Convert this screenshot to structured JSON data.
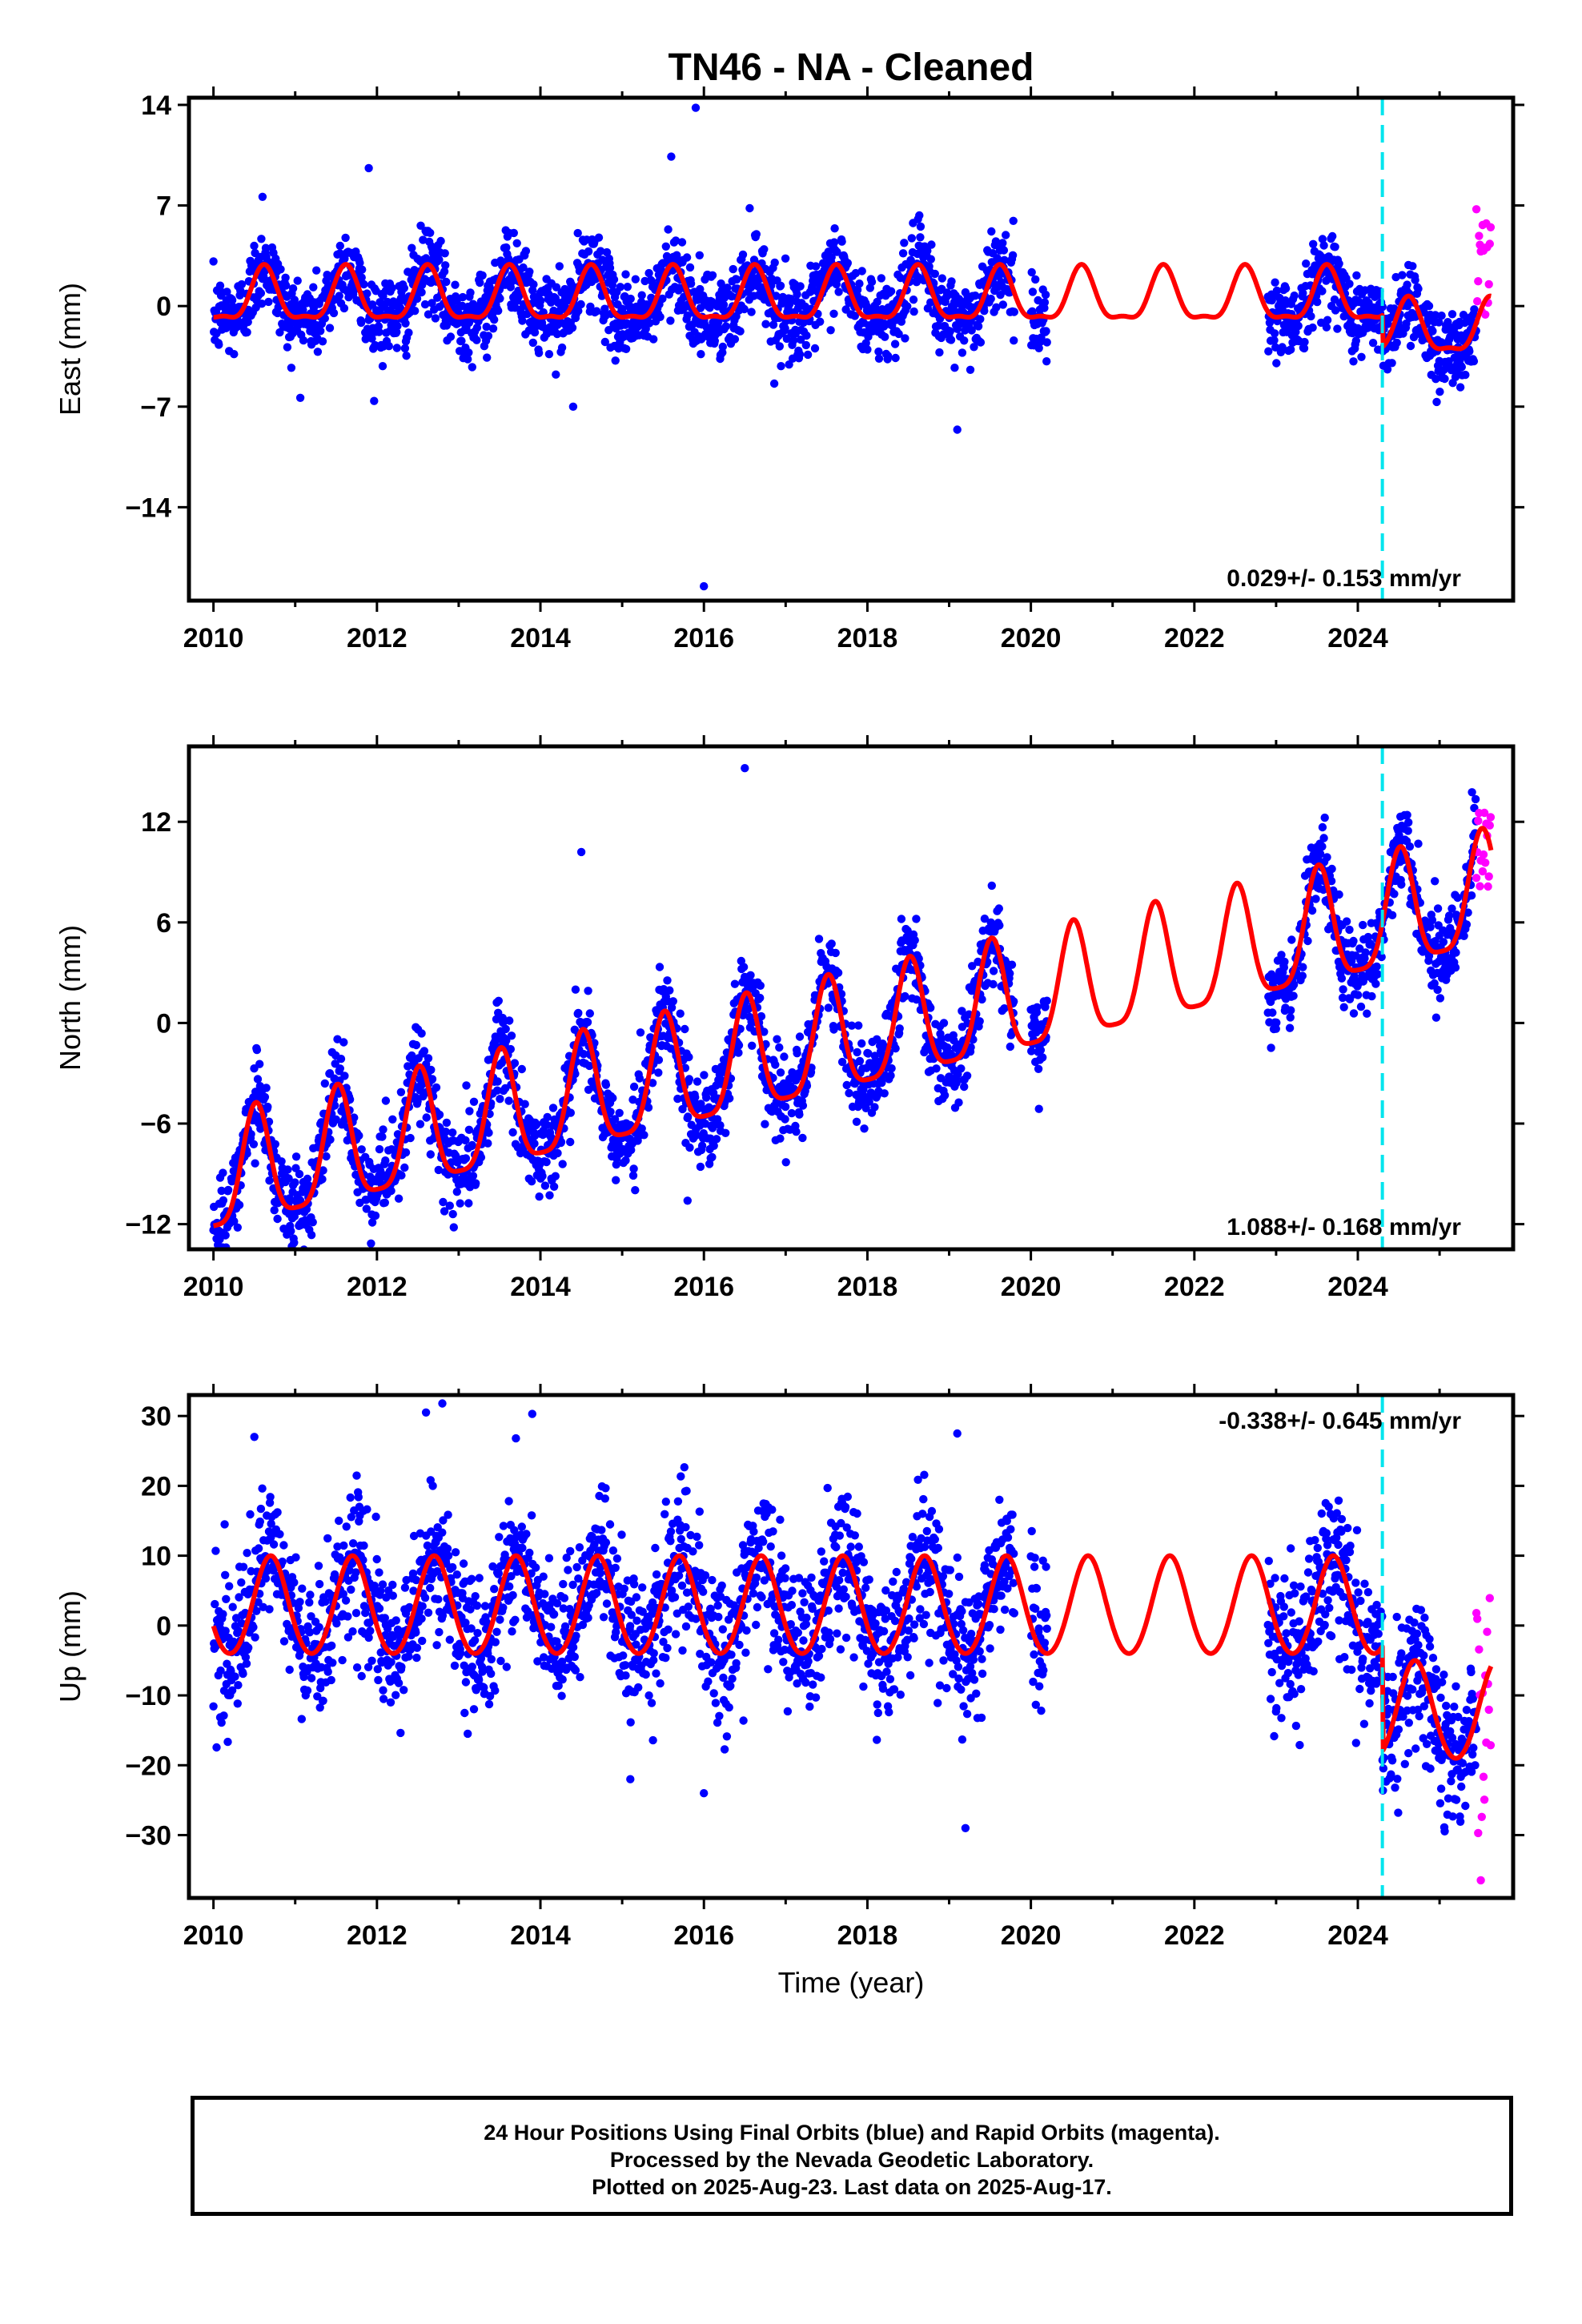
{
  "chart_data": [
    {
      "type": "scatter",
      "title": "TN46  - NA - Cleaned",
      "ylabel": "East (mm)",
      "xlabel": "",
      "xlim": [
        2009.7,
        2025.9
      ],
      "ylim": [
        -20.5,
        14.5
      ],
      "yticks": [
        14,
        7,
        0,
        -7,
        -14
      ],
      "xticks": [
        2010,
        2012,
        2014,
        2016,
        2018,
        2020,
        2022,
        2024
      ],
      "rate_text": "0.029+/- 0.153 mm/yr",
      "rate_position": "bottom-right",
      "offset_line_year": 2024.3,
      "final_orbit_points": {
        "color": "#0000ff",
        "segments": [
          [
            2010.0,
            2019.8
          ],
          [
            2020.0,
            2020.2
          ],
          [
            2022.9,
            2025.45
          ]
        ]
      },
      "rapid_orbit_points": {
        "color": "#ff00ff",
        "range": [
          2025.45,
          2025.63
        ],
        "min": -1,
        "max": 7.5
      },
      "model_curve": {
        "color": "#ff0000",
        "offset": 0.5,
        "annual_amplitude": 1.8,
        "peak_phase": 0.62,
        "semiannual_amplitude": 0.6,
        "after_offset_shift": -2.2
      },
      "scatter_sd": 1.4,
      "outliers": [
        [
          2011.9,
          9.6
        ],
        [
          2015.9,
          13.8
        ],
        [
          2015.6,
          10.4
        ],
        [
          2016.0,
          -19.5
        ],
        [
          2019.1,
          -8.6
        ],
        [
          2014.4,
          -7
        ],
        [
          2010.6,
          7.6
        ]
      ],
      "grid": false
    },
    {
      "type": "scatter",
      "title": "",
      "ylabel": "North (mm)",
      "xlabel": "",
      "xlim": [
        2009.7,
        2025.9
      ],
      "ylim": [
        -13.5,
        16.5
      ],
      "yticks": [
        12,
        6,
        0,
        -6,
        -12
      ],
      "xticks": [
        2010,
        2012,
        2014,
        2016,
        2018,
        2020,
        2022,
        2024
      ],
      "rate_text": "1.088+/- 0.168 mm/yr",
      "rate_position": "bottom-right",
      "offset_line_year": 2024.3,
      "final_orbit_points": {
        "color": "#0000ff",
        "segments": [
          [
            2010.0,
            2019.8
          ],
          [
            2020.0,
            2020.2
          ],
          [
            2022.9,
            2025.45
          ]
        ]
      },
      "rapid_orbit_points": {
        "color": "#ff00ff",
        "range": [
          2025.45,
          2025.63
        ],
        "min": 8,
        "max": 13
      },
      "model_curve": {
        "color": "#ff0000",
        "start": -9.5,
        "trend": 1.09,
        "annual_amplitude": 3.4,
        "peak_phase": 0.52,
        "semiannual_amplitude": 0.8,
        "after_offset_shift": 0
      },
      "scatter_sd": 1.3,
      "outliers": [
        [
          2014.5,
          10.2
        ],
        [
          2016.5,
          15.2
        ],
        [
          2015.8,
          -10.6
        ],
        [
          2016.1,
          -8
        ],
        [
          2010.1,
          -12.5
        ]
      ],
      "grid": false
    },
    {
      "type": "scatter",
      "title": "",
      "ylabel": "Up (mm)",
      "xlabel": "Time (year)",
      "xlim": [
        2009.7,
        2025.9
      ],
      "ylim": [
        -39,
        33
      ],
      "yticks": [
        30,
        20,
        10,
        0,
        -10,
        -20,
        -30
      ],
      "xticks": [
        2010,
        2012,
        2014,
        2016,
        2018,
        2020,
        2022,
        2024
      ],
      "rate_text": "-0.338+/- 0.645 mm/yr",
      "rate_position": "top-right",
      "offset_line_year": 2024.3,
      "final_orbit_points": {
        "color": "#0000ff",
        "segments": [
          [
            2010.0,
            2019.8
          ],
          [
            2020.0,
            2020.2
          ],
          [
            2022.9,
            2025.45
          ]
        ]
      },
      "rapid_orbit_points": {
        "color": "#ff00ff",
        "range": [
          2025.45,
          2025.63
        ],
        "min": -37,
        "max": 6
      },
      "model_curve": {
        "color": "#ff0000",
        "offset": 2.5,
        "annual_amplitude": 7.0,
        "peak_phase": 0.7,
        "semiannual_amplitude": 0.5,
        "after_offset_shift": -15
      },
      "scatter_sd": 5,
      "outliers": [
        [
          2012.6,
          30.5
        ],
        [
          2012.8,
          31.8
        ],
        [
          2013.7,
          26.8
        ],
        [
          2013.9,
          30.3
        ],
        [
          2019.1,
          27.5
        ],
        [
          2010.5,
          27
        ],
        [
          2015.1,
          -22
        ],
        [
          2016.0,
          -24
        ],
        [
          2019.2,
          -29
        ]
      ],
      "grid": false
    }
  ],
  "caption": {
    "line1": "24 Hour Positions Using Final Orbits (blue) and Rapid Orbits (magenta).",
    "line2": "Processed by the Nevada Geodetic Laboratory.",
    "line3": "Plotted on 2025-Aug-23. Last data on 2025-Aug-17."
  },
  "colors": {
    "final": "#0000ff",
    "rapid": "#ff00ff",
    "model": "#ff0000",
    "offset_line": "#00e5ee"
  }
}
